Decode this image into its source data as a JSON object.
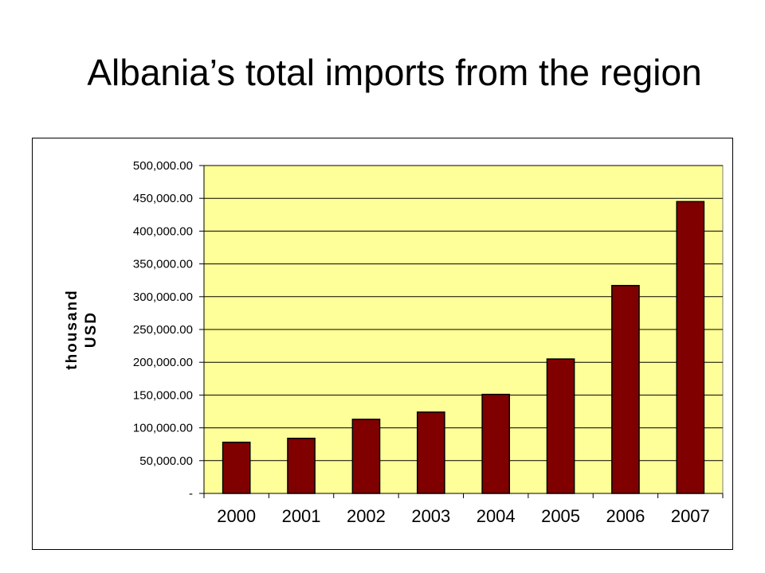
{
  "slide": {
    "title": "Albania’s total imports from the region"
  },
  "chart_data": {
    "type": "bar",
    "title": "",
    "xlabel": "",
    "ylabel_lines": [
      "thousand",
      "USD"
    ],
    "categories": [
      "2000",
      "2001",
      "2002",
      "2003",
      "2004",
      "2005",
      "2006",
      "2007"
    ],
    "series": [
      {
        "values": [
          78000,
          84000,
          113000,
          124000,
          151000,
          205000,
          317000,
          445000
        ]
      }
    ],
    "ylim": [
      0,
      500000
    ],
    "y_ticks": [
      0,
      50000,
      100000,
      150000,
      200000,
      250000,
      300000,
      350000,
      400000,
      450000,
      500000
    ],
    "y_tick_labels": [
      "-",
      "50,000.00",
      "100,000.00",
      "150,000.00",
      "200,000.00",
      "250,000.00",
      "300,000.00",
      "350,000.00",
      "400,000.00",
      "450,000.00",
      "500,000.00"
    ],
    "grid": true,
    "legend": "none",
    "colors": {
      "plot_background": "#FFFF99",
      "bar_fill": "#800000",
      "bar_stroke": "#000000",
      "gridline": "#000000"
    }
  }
}
